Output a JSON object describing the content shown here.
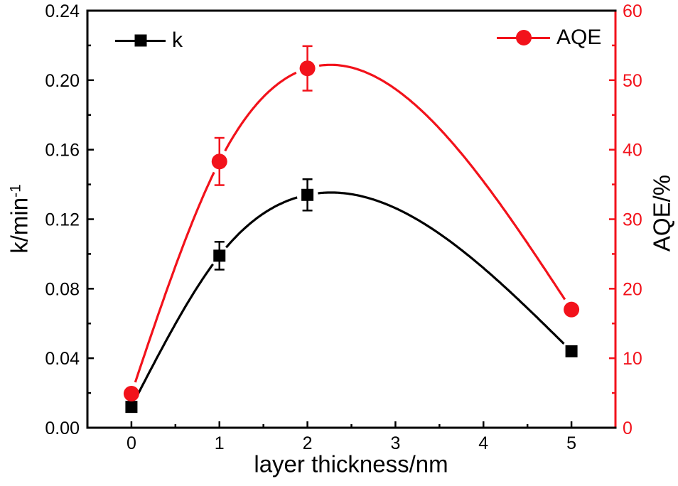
{
  "chart_data": {
    "type": "line",
    "title": "",
    "xlabel": "layer thickness/nm",
    "x_axis": {
      "range": [
        -0.5,
        5.5
      ],
      "major_ticks": [
        0,
        1,
        2,
        3,
        4,
        5
      ],
      "tick_labels": [
        "0",
        "1",
        "2",
        "3",
        "4",
        "5"
      ],
      "minor_ticks": [
        0.5,
        1.5,
        2.5,
        3.5,
        4.5
      ],
      "color": "#000000"
    },
    "left_axis": {
      "label_base": "k/min",
      "label_sup": "-1",
      "range": [
        0,
        0.24
      ],
      "major_ticks": [
        0,
        0.04,
        0.08,
        0.12,
        0.16,
        0.2,
        0.24
      ],
      "tick_labels": [
        "0.00",
        "0.04",
        "0.08",
        "0.12",
        "0.16",
        "0.20",
        "0.24"
      ],
      "minor_ticks": [
        0.02,
        0.06,
        0.1,
        0.14,
        0.18,
        0.22
      ],
      "color": "#000000"
    },
    "right_axis": {
      "label": "AQE/%",
      "range": [
        0,
        60
      ],
      "major_ticks": [
        0,
        10,
        20,
        30,
        40,
        50,
        60
      ],
      "tick_labels": [
        "0",
        "10",
        "20",
        "30",
        "40",
        "50",
        "60"
      ],
      "minor_ticks": [
        5,
        15,
        25,
        35,
        45,
        55
      ],
      "color": "#f2121b"
    },
    "x": [
      0,
      1,
      2,
      5
    ],
    "series": [
      {
        "name": "k",
        "axis": "left",
        "marker": "square",
        "color": "#000000",
        "values": [
          0.012,
          0.099,
          0.134,
          0.044
        ],
        "errors": [
          null,
          0.008,
          0.009,
          null
        ]
      },
      {
        "name": "AQE",
        "axis": "right",
        "marker": "circle",
        "color": "#f2121b",
        "values": [
          4.9,
          38.3,
          51.7,
          17.0
        ],
        "errors": [
          null,
          3.4,
          3.2,
          null
        ]
      }
    ],
    "legend": {
      "position": "top-inside",
      "items": [
        {
          "label": "k"
        },
        {
          "label": "AQE"
        }
      ]
    },
    "grid": false
  }
}
